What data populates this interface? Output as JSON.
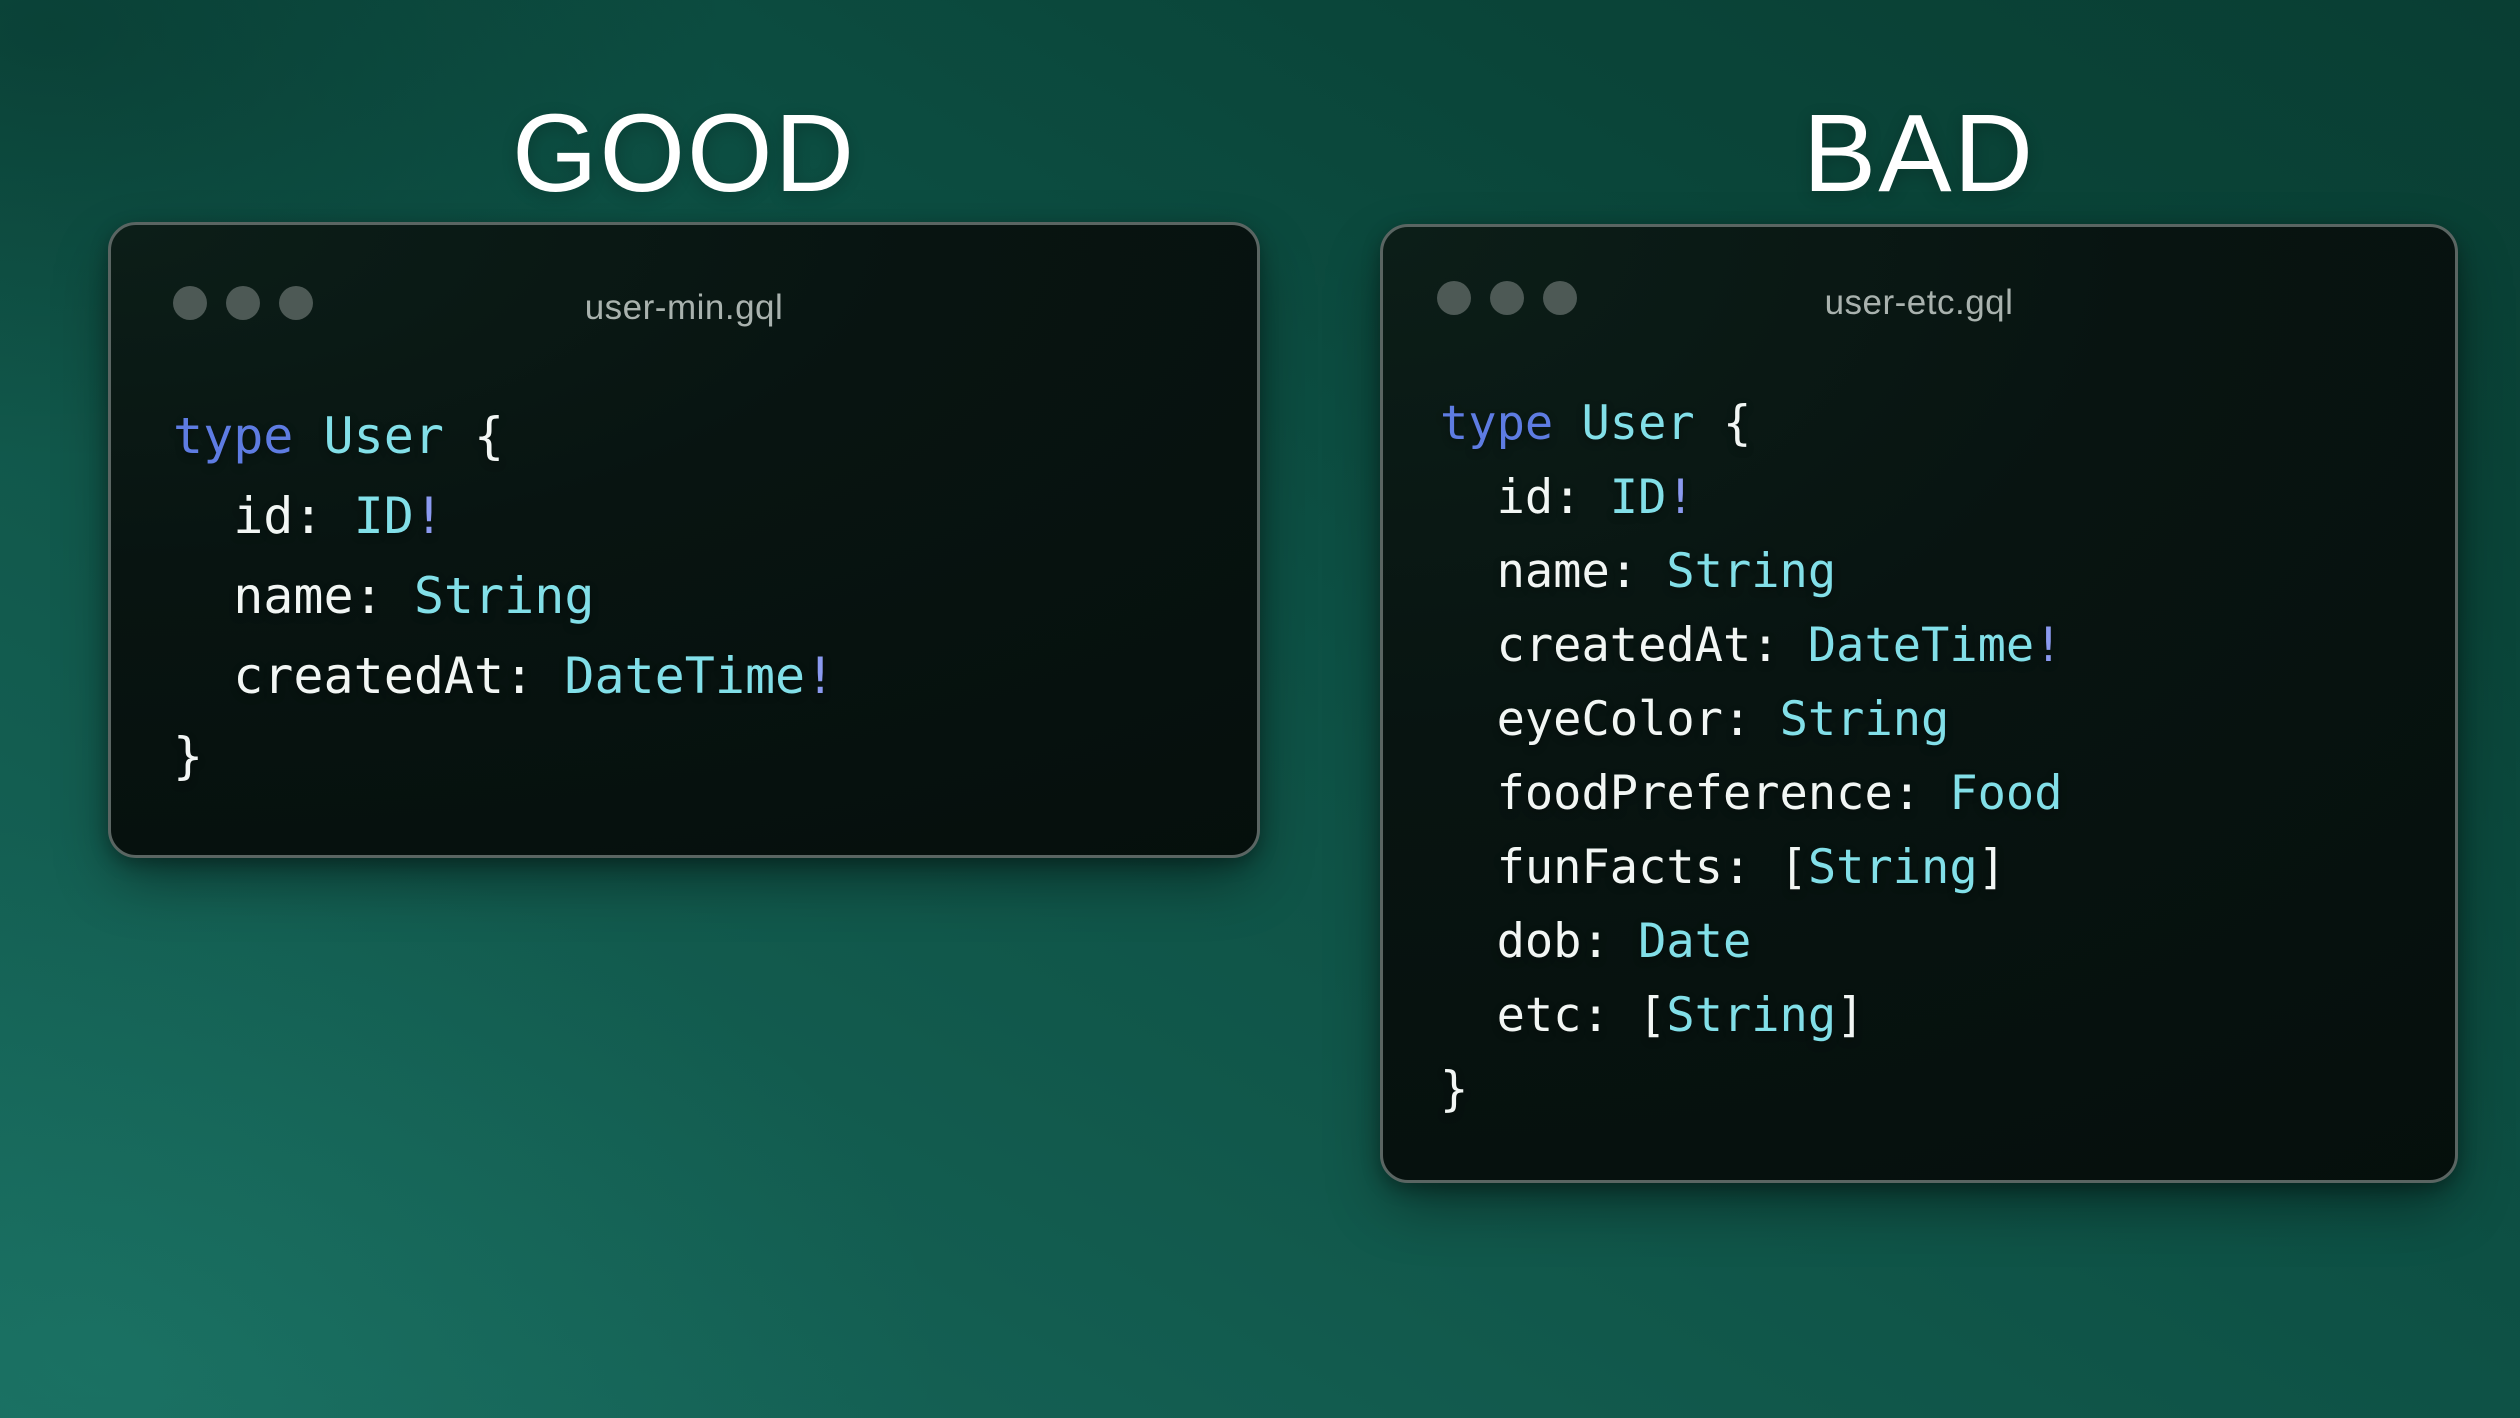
{
  "headings": {
    "good": "GOOD",
    "bad": "BAD"
  },
  "colors": {
    "background_light": "#17685c",
    "background_dark": "#093e33",
    "window_background": "#081411",
    "window_border": "#5a6562",
    "window_title_text": "#a9b2ae",
    "traffic_dot": "#4d5955",
    "code_plain": "#f2f6f4",
    "code_keyword": "#5e7ce2",
    "code_type": "#82dfe8",
    "code_bang": "#8b9af0",
    "heading_text": "#ffffff"
  },
  "icons": {
    "window_controls": "traffic-light-dots"
  },
  "windows": [
    {
      "title": "user-min.gql",
      "code": [
        [
          [
            "kw",
            "type"
          ],
          [
            "pl",
            " "
          ],
          [
            "ty",
            "User"
          ],
          [
            "pl",
            " {"
          ]
        ],
        [
          [
            "pl",
            "  id: "
          ],
          [
            "ty",
            "ID"
          ],
          [
            "bang",
            "!"
          ]
        ],
        [
          [
            "pl",
            "  name: "
          ],
          [
            "ty",
            "String"
          ]
        ],
        [
          [
            "pl",
            "  createdAt: "
          ],
          [
            "ty",
            "DateTime"
          ],
          [
            "bang",
            "!"
          ]
        ],
        [
          [
            "pl",
            "}"
          ]
        ]
      ]
    },
    {
      "title": "user-etc.gql",
      "code": [
        [
          [
            "kw",
            "type"
          ],
          [
            "pl",
            " "
          ],
          [
            "ty",
            "User"
          ],
          [
            "pl",
            " {"
          ]
        ],
        [
          [
            "pl",
            "  id: "
          ],
          [
            "ty",
            "ID"
          ],
          [
            "bang",
            "!"
          ]
        ],
        [
          [
            "pl",
            "  name: "
          ],
          [
            "ty",
            "String"
          ]
        ],
        [
          [
            "pl",
            "  createdAt: "
          ],
          [
            "ty",
            "DateTime"
          ],
          [
            "bang",
            "!"
          ]
        ],
        [
          [
            "pl",
            "  eyeColor: "
          ],
          [
            "ty",
            "String"
          ]
        ],
        [
          [
            "pl",
            "  foodPreference: "
          ],
          [
            "ty",
            "Food"
          ]
        ],
        [
          [
            "pl",
            "  funFacts: ["
          ],
          [
            "ty",
            "String"
          ],
          [
            "pl",
            "]"
          ]
        ],
        [
          [
            "pl",
            "  dob: "
          ],
          [
            "ty",
            "Date"
          ]
        ],
        [
          [
            "pl",
            "  etc: ["
          ],
          [
            "ty",
            "String"
          ],
          [
            "pl",
            "]"
          ]
        ],
        [
          [
            "pl",
            "}"
          ]
        ]
      ]
    }
  ]
}
